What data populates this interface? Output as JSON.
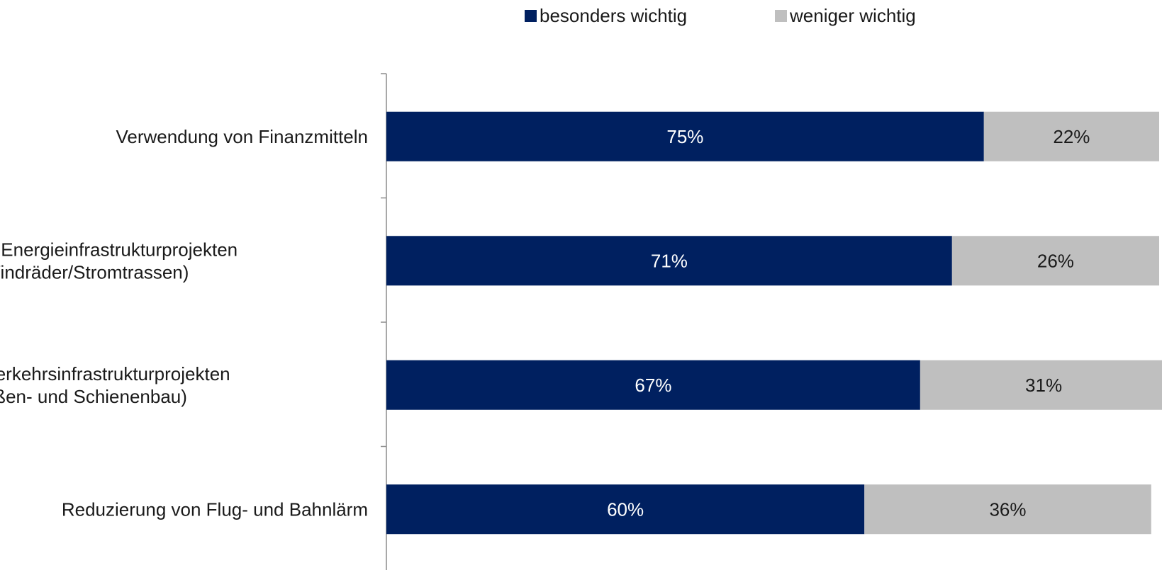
{
  "chart_data": {
    "type": "bar",
    "orientation": "horizontal",
    "stacked": true,
    "categories": [
      [
        "Verwendung von Finanzmitteln"
      ],
      [
        "Bau von Energieinfrastrukturprojekten",
        "(Windräder/Stromtrassen)"
      ],
      [
        "Bau von Verkehrsinfrastrukturprojekten",
        "(Straßen- und Schienenbau)"
      ],
      [
        "Reduzierung von Flug- und Bahnlärm"
      ]
    ],
    "series": [
      {
        "name": "besonders wichtig",
        "color": "#002060",
        "label_color": "#ffffff",
        "values": [
          75,
          71,
          67,
          60
        ],
        "labels": [
          "75%",
          "71%",
          "67%",
          "60%"
        ]
      },
      {
        "name": "weniger wichtig",
        "color": "#bfbfbf",
        "label_color": "#1a1a1a",
        "values": [
          22,
          26,
          31,
          36
        ],
        "labels": [
          "22%",
          "26%",
          "31%",
          "36%"
        ]
      }
    ],
    "xlim": [
      0,
      97
    ],
    "grid": false,
    "legend_position": "top"
  }
}
